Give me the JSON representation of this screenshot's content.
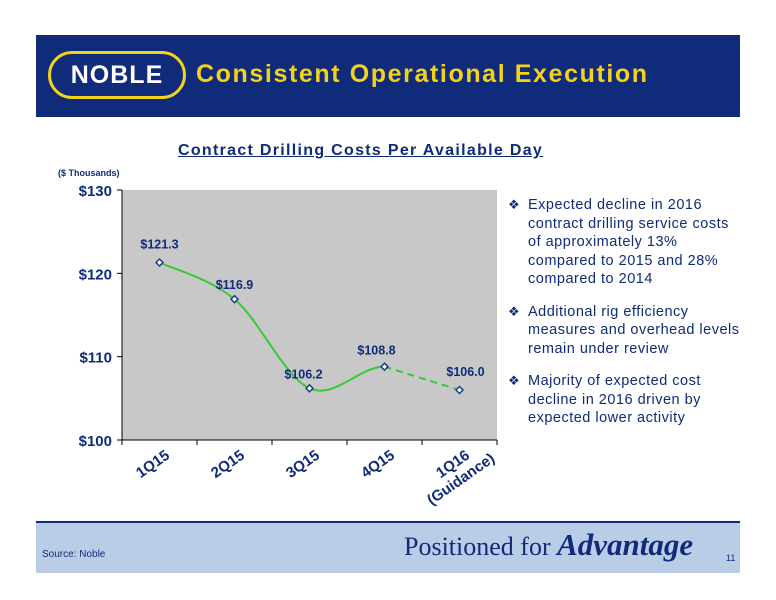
{
  "header": {
    "logo_text": "NOBLE",
    "title": "Consistent Operational Execution",
    "colors": {
      "background": "#0f2b7a",
      "accent": "#f2d21a"
    }
  },
  "chart_data": {
    "type": "line",
    "title": "Contract Drilling Costs Per Available Day",
    "ylabel": "($ Thousands)",
    "xlabel": "",
    "categories": [
      "1Q15",
      "2Q15",
      "3Q15",
      "4Q15",
      "1Q16 (Guidance)"
    ],
    "x_tick_labels": [
      [
        "1Q15"
      ],
      [
        "2Q15"
      ],
      [
        "3Q15"
      ],
      [
        "4Q15"
      ],
      [
        "1Q16",
        "(Guidance)"
      ]
    ],
    "series": [
      {
        "values": [
          121.3,
          116.9,
          106.2,
          108.8,
          106.0
        ],
        "data_labels": [
          "$121.3",
          "$116.9",
          "$106.2",
          "$108.8",
          "$106.0"
        ],
        "line_color": "#33cc33",
        "marker_color": "#1f3c8c",
        "dashed_last_segment": true
      }
    ],
    "ylim": [
      100,
      130
    ],
    "y_ticks": [
      100,
      110,
      120,
      130
    ],
    "y_tick_labels": [
      "$100",
      "$110",
      "$120",
      "$130"
    ],
    "grid": false,
    "legend": "none",
    "plot_background": "#c8c8c8"
  },
  "bullets": [
    "Expected decline in 2016 contract drilling service costs of approximately 13% compared to 2015 and 28% compared to 2014",
    "Additional rig efficiency measures and overhead levels remain under review",
    "Majority of expected cost decline in 2016 driven by expected lower activity"
  ],
  "bullet_icon": "diamond-bullet-icon",
  "footer": {
    "source": "Source: Noble",
    "tagline_prefix": "Positioned for ",
    "tagline_strong": "Advantage",
    "page_number": "11"
  }
}
